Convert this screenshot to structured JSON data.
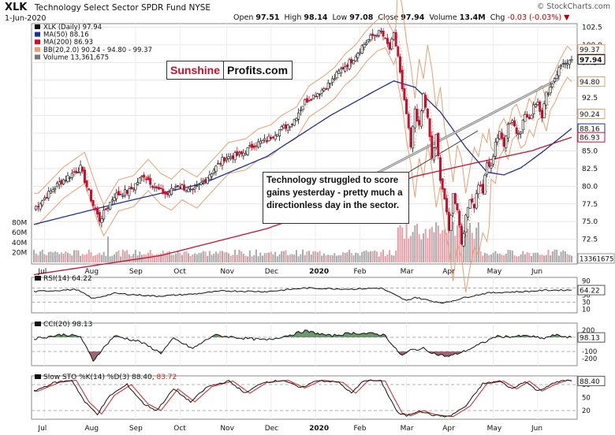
{
  "header": {
    "symbol": "XLK",
    "name": "Technology Select Sector SPDR Fund",
    "exchange": "NYSE",
    "date": "1-Jun-2020",
    "open_label": "Open",
    "open": "97.51",
    "high_label": "High",
    "high": "98.14",
    "low_label": "Low",
    "low": "97.08",
    "close_label": "Close",
    "close": "97.94",
    "volume_label": "Volume",
    "volume": "13.4M",
    "chg_label": "Chg",
    "chg": "-0.03 (-0.03%)",
    "copyright": "© StockCharts.com"
  },
  "logo": {
    "part1": "Sunshine",
    "part2": "Profits.com"
  },
  "annotation": "Technology struggled to score gains yesterday - pretty much a directionless day in the sector.",
  "colors": {
    "up": "#111111",
    "down": "#c8102e",
    "ma50": "#1f2f9f",
    "ma200": "#c8102e",
    "bb": "#e8a070",
    "vol_up": "#aaaaaa",
    "vol_down": "#e6a0a8",
    "ind_line": "#111111",
    "ind_fill": "#4a7a4a",
    "ind_fill_low": "#8a4050",
    "sto_d": "#d02020"
  },
  "chart_data": [
    {
      "type": "candlestick",
      "title": "XLK (Daily) 97.94",
      "legend": [
        {
          "name": "XLK (Daily) 97.94",
          "color": "#111111"
        },
        {
          "name": "MA(50) 88.16",
          "color": "#1f2f9f"
        },
        {
          "name": "MA(200) 86.93",
          "color": "#c8102e"
        },
        {
          "name": "BB(20,2.0) 90.24 - 94.80 - 99.37",
          "color": "#e8a070"
        },
        {
          "name": "Volume 13,361,675",
          "color": "#777777"
        }
      ],
      "ylim": [
        69,
        103
      ],
      "y_ticks": [
        "102.5",
        "100.0",
        "97.5",
        "95.0",
        "92.5",
        "90.0",
        "87.5",
        "85.0",
        "82.5",
        "80.0",
        "77.5",
        "75.0",
        "72.5",
        "70.0"
      ],
      "price_tags": [
        {
          "value": 99.37,
          "label": "99.37",
          "color": "#e8a070"
        },
        {
          "value": 97.94,
          "label": "97.94",
          "color": "#111111"
        },
        {
          "value": 94.8,
          "label": "94.80",
          "color": "#e8a070"
        },
        {
          "value": 90.24,
          "label": "90.24",
          "color": "#e8a070"
        },
        {
          "value": 88.16,
          "label": "88.16",
          "color": "#1f2f9f"
        },
        {
          "value": 86.93,
          "label": "86.93",
          "color": "#c8102e"
        }
      ],
      "volume_ticks": [
        "80M",
        "60M",
        "40M",
        "20M"
      ],
      "volume_tag": "13361675",
      "x_ticks": [
        "Jul",
        "Aug",
        "Sep",
        "Oct",
        "Nov",
        "Dec",
        "2020",
        "Feb",
        "Mar",
        "Apr",
        "May",
        "Jun"
      ],
      "close_anchors": [
        [
          0,
          76.8
        ],
        [
          12,
          80.5
        ],
        [
          22,
          82.6
        ],
        [
          28,
          77.3
        ],
        [
          31,
          75.2
        ],
        [
          38,
          78.7
        ],
        [
          45,
          79.3
        ],
        [
          52,
          81.6
        ],
        [
          58,
          79.6
        ],
        [
          63,
          78.8
        ],
        [
          68,
          80.3
        ],
        [
          75,
          79.1
        ],
        [
          82,
          81.4
        ],
        [
          90,
          84.0
        ],
        [
          98,
          84.5
        ],
        [
          104,
          85.9
        ],
        [
          110,
          86.5
        ],
        [
          115,
          87.8
        ],
        [
          122,
          89.0
        ],
        [
          128,
          92.0
        ],
        [
          135,
          93.4
        ],
        [
          140,
          94.6
        ],
        [
          145,
          96.5
        ],
        [
          150,
          97.8
        ],
        [
          155,
          99.8
        ],
        [
          160,
          101.3
        ],
        [
          164,
          101.8
        ],
        [
          168,
          99.4
        ],
        [
          170,
          101.4
        ],
        [
          172,
          98.4
        ],
        [
          174,
          93.5
        ],
        [
          176,
          90.2
        ],
        [
          178,
          85.4
        ],
        [
          180,
          91.0
        ],
        [
          182,
          88.2
        ],
        [
          184,
          93.0
        ],
        [
          186,
          89.5
        ],
        [
          188,
          84.0
        ],
        [
          190,
          87.0
        ],
        [
          192,
          81.2
        ],
        [
          194,
          78.2
        ],
        [
          196,
          73.6
        ],
        [
          198,
          78.8
        ],
        [
          200,
          76.9
        ],
        [
          202,
          72.0
        ],
        [
          204,
          75.5
        ],
        [
          206,
          78.5
        ],
        [
          208,
          77.2
        ],
        [
          210,
          80.4
        ],
        [
          212,
          79.2
        ],
        [
          214,
          83.2
        ],
        [
          216,
          82.6
        ],
        [
          218,
          86.4
        ],
        [
          220,
          87.4
        ],
        [
          222,
          86.0
        ],
        [
          224,
          88.8
        ],
        [
          226,
          89.4
        ],
        [
          228,
          87.6
        ],
        [
          230,
          88.1
        ],
        [
          232,
          90.2
        ],
        [
          234,
          89.2
        ],
        [
          236,
          91.6
        ],
        [
          238,
          92.0
        ],
        [
          240,
          90.0
        ],
        [
          242,
          93.0
        ],
        [
          244,
          94.0
        ],
        [
          246,
          95.4
        ],
        [
          248,
          96.6
        ],
        [
          250,
          97.6
        ],
        [
          252,
          97.0
        ],
        [
          254,
          97.9
        ]
      ],
      "ma50_anchors": [
        [
          0,
          74.6
        ],
        [
          40,
          77.6
        ],
        [
          80,
          80.4
        ],
        [
          110,
          84.2
        ],
        [
          140,
          90.0
        ],
        [
          160,
          93.3
        ],
        [
          170,
          94.9
        ],
        [
          180,
          94.0
        ],
        [
          192,
          90.5
        ],
        [
          204,
          85.5
        ],
        [
          214,
          82.0
        ],
        [
          222,
          81.6
        ],
        [
          230,
          82.6
        ],
        [
          240,
          84.8
        ],
        [
          254,
          88.16
        ]
      ],
      "ma200_anchors": [
        [
          0,
          67.5
        ],
        [
          60,
          70.2
        ],
        [
          110,
          74.0
        ],
        [
          150,
          78.2
        ],
        [
          180,
          81.4
        ],
        [
          210,
          83.4
        ],
        [
          235,
          85.0
        ],
        [
          254,
          86.93
        ]
      ],
      "rsi": {
        "label": "RSI(14) 64.22",
        "ylim": [
          0,
          100
        ],
        "ticks": [
          90,
          70,
          50,
          30,
          10
        ],
        "levels": [
          70,
          30
        ],
        "current": "64.22",
        "anchors": [
          [
            0,
            60
          ],
          [
            20,
            66
          ],
          [
            28,
            40
          ],
          [
            38,
            55
          ],
          [
            58,
            47
          ],
          [
            75,
            53
          ],
          [
            90,
            62
          ],
          [
            110,
            60
          ],
          [
            128,
            70
          ],
          [
            150,
            67
          ],
          [
            164,
            70
          ],
          [
            170,
            52
          ],
          [
            176,
            34
          ],
          [
            180,
            44
          ],
          [
            188,
            33
          ],
          [
            194,
            28
          ],
          [
            204,
            44
          ],
          [
            214,
            56
          ],
          [
            222,
            58
          ],
          [
            232,
            60
          ],
          [
            242,
            64
          ],
          [
            254,
            64.22
          ]
        ]
      },
      "cci": {
        "label": "CCI(20) 98.13",
        "ylim": [
          -300,
          300
        ],
        "ticks": [
          200,
          100,
          -100,
          -200
        ],
        "levels": [
          100,
          -100
        ],
        "current": "98.13",
        "anchors": [
          [
            0,
            80
          ],
          [
            14,
            140
          ],
          [
            22,
            110
          ],
          [
            28,
            -230
          ],
          [
            32,
            -80
          ],
          [
            38,
            120
          ],
          [
            50,
            40
          ],
          [
            60,
            -120
          ],
          [
            66,
            80
          ],
          [
            75,
            -60
          ],
          [
            85,
            130
          ],
          [
            98,
            90
          ],
          [
            110,
            60
          ],
          [
            122,
            140
          ],
          [
            128,
            190
          ],
          [
            140,
            120
          ],
          [
            150,
            160
          ],
          [
            160,
            150
          ],
          [
            166,
            130
          ],
          [
            170,
            -40
          ],
          [
            174,
            -160
          ],
          [
            178,
            -80
          ],
          [
            184,
            -60
          ],
          [
            190,
            -140
          ],
          [
            196,
            -170
          ],
          [
            204,
            -90
          ],
          [
            212,
            20
          ],
          [
            218,
            110
          ],
          [
            226,
            110
          ],
          [
            234,
            120
          ],
          [
            240,
            80
          ],
          [
            246,
            130
          ],
          [
            254,
            98.13
          ]
        ]
      },
      "slow_sto": {
        "label": "Slow STO %K(14) %D(3)",
        "k": "88.40",
        "d": "83.72",
        "ylim": [
          0,
          100
        ],
        "ticks": [
          80,
          50,
          20
        ],
        "levels": [
          80,
          20
        ],
        "current": "88.40",
        "anchors": [
          [
            0,
            65
          ],
          [
            10,
            85
          ],
          [
            18,
            90
          ],
          [
            24,
            40
          ],
          [
            30,
            12
          ],
          [
            36,
            55
          ],
          [
            44,
            80
          ],
          [
            52,
            35
          ],
          [
            58,
            20
          ],
          [
            66,
            70
          ],
          [
            74,
            40
          ],
          [
            82,
            75
          ],
          [
            92,
            88
          ],
          [
            100,
            60
          ],
          [
            108,
            85
          ],
          [
            118,
            90
          ],
          [
            126,
            72
          ],
          [
            134,
            90
          ],
          [
            144,
            85
          ],
          [
            150,
            60
          ],
          [
            156,
            90
          ],
          [
            164,
            88
          ],
          [
            168,
            50
          ],
          [
            172,
            14
          ],
          [
            176,
            8
          ],
          [
            182,
            20
          ],
          [
            188,
            10
          ],
          [
            196,
            6
          ],
          [
            204,
            30
          ],
          [
            212,
            82
          ],
          [
            220,
            88
          ],
          [
            226,
            70
          ],
          [
            232,
            88
          ],
          [
            238,
            65
          ],
          [
            244,
            80
          ],
          [
            250,
            90
          ],
          [
            254,
            88.4
          ]
        ]
      }
    }
  ]
}
